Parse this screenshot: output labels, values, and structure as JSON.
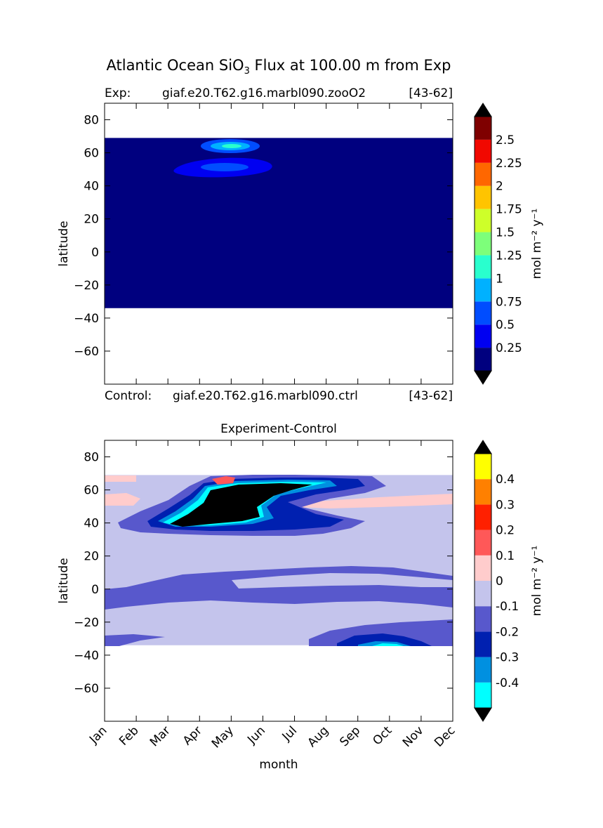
{
  "figure": {
    "title_main": "Atlantic Ocean SiO",
    "title_sub": "3",
    "title_rest": " Flux at 100.00 m from Exp"
  },
  "top_panel": {
    "left_label": "Exp:",
    "case_name": "giaf.e20.T62.g16.marbl090.zooO2",
    "years": "[43-62]",
    "bottom_left_label": "Control:",
    "bottom_case_name": "giaf.e20.T62.g16.marbl090.ctrl",
    "bottom_years": "[43-62]"
  },
  "bottom_panel": {
    "title": "Experiment-Control"
  },
  "chart_data": [
    {
      "type": "heatmap",
      "title": "",
      "xlabel": "",
      "ylabel": "latitude",
      "x_categories": [
        "Jan",
        "Feb",
        "Mar",
        "Apr",
        "May",
        "Jun",
        "Jul",
        "Aug",
        "Sep",
        "Oct",
        "Nov",
        "Dec"
      ],
      "xlim": [
        0,
        11
      ],
      "ylim": [
        -80,
        90
      ],
      "yticks": [
        80,
        60,
        40,
        20,
        0,
        -20,
        -40,
        -60
      ],
      "ytick_labels": [
        "80",
        "60",
        "40",
        "20",
        "0",
        "−20",
        "−40",
        "−60"
      ],
      "data_lat_range": [
        -34,
        69
      ],
      "background_value": 0.1,
      "features": [
        {
          "month": 4.5,
          "lat": 64,
          "value": 1.0
        },
        {
          "month": 4.0,
          "lat": 52,
          "value": 0.6
        }
      ],
      "colorbar": {
        "label": "mol m⁻² y⁻¹",
        "levels": [
          0,
          0.25,
          0.5,
          0.75,
          1,
          1.25,
          1.5,
          1.75,
          2,
          2.25,
          2.5,
          2.75
        ],
        "tick_labels": [
          "0.25",
          "0.5",
          "0.75",
          "1",
          "1.25",
          "1.5",
          "1.75",
          "2",
          "2.25",
          "2.5"
        ],
        "colors": [
          "#00007f",
          "#0000f1",
          "#004dff",
          "#00b1ff",
          "#29ffce",
          "#7dff7a",
          "#ceff29",
          "#ffc400",
          "#ff6700",
          "#f10800",
          "#7f0000"
        ],
        "extend_color": "#000000"
      }
    },
    {
      "type": "heatmap",
      "title": "Experiment-Control",
      "xlabel": "month",
      "ylabel": "latitude",
      "x_categories": [
        "Jan",
        "Feb",
        "Mar",
        "Apr",
        "May",
        "Jun",
        "Jul",
        "Aug",
        "Sep",
        "Oct",
        "Nov",
        "Dec"
      ],
      "xlim": [
        0,
        11
      ],
      "ylim": [
        -80,
        90
      ],
      "yticks": [
        80,
        60,
        40,
        20,
        0,
        -20,
        -40,
        -60
      ],
      "ytick_labels": [
        "80",
        "60",
        "40",
        "20",
        "0",
        "−20",
        "−40",
        "−60"
      ],
      "data_lat_range": [
        -34,
        69
      ],
      "background_value": -0.05,
      "colorbar": {
        "label": "mol m⁻² y⁻¹",
        "levels": [
          -0.5,
          -0.4,
          -0.3,
          -0.2,
          -0.1,
          0,
          0.1,
          0.2,
          0.3,
          0.4,
          0.5
        ],
        "tick_labels": [
          "0.4",
          "0.3",
          "0.2",
          "0.1",
          "0",
          "-0.1",
          "-0.2",
          "-0.3",
          "-0.4"
        ],
        "colors": [
          "#00ffff",
          "#0090e0",
          "#0020b0",
          "#5858cc",
          "#c4c4ec",
          "#ffcccc",
          "#ff5858",
          "#ff2000",
          "#ff8000",
          "#ffff00"
        ],
        "extend_color": "#000000"
      }
    }
  ]
}
